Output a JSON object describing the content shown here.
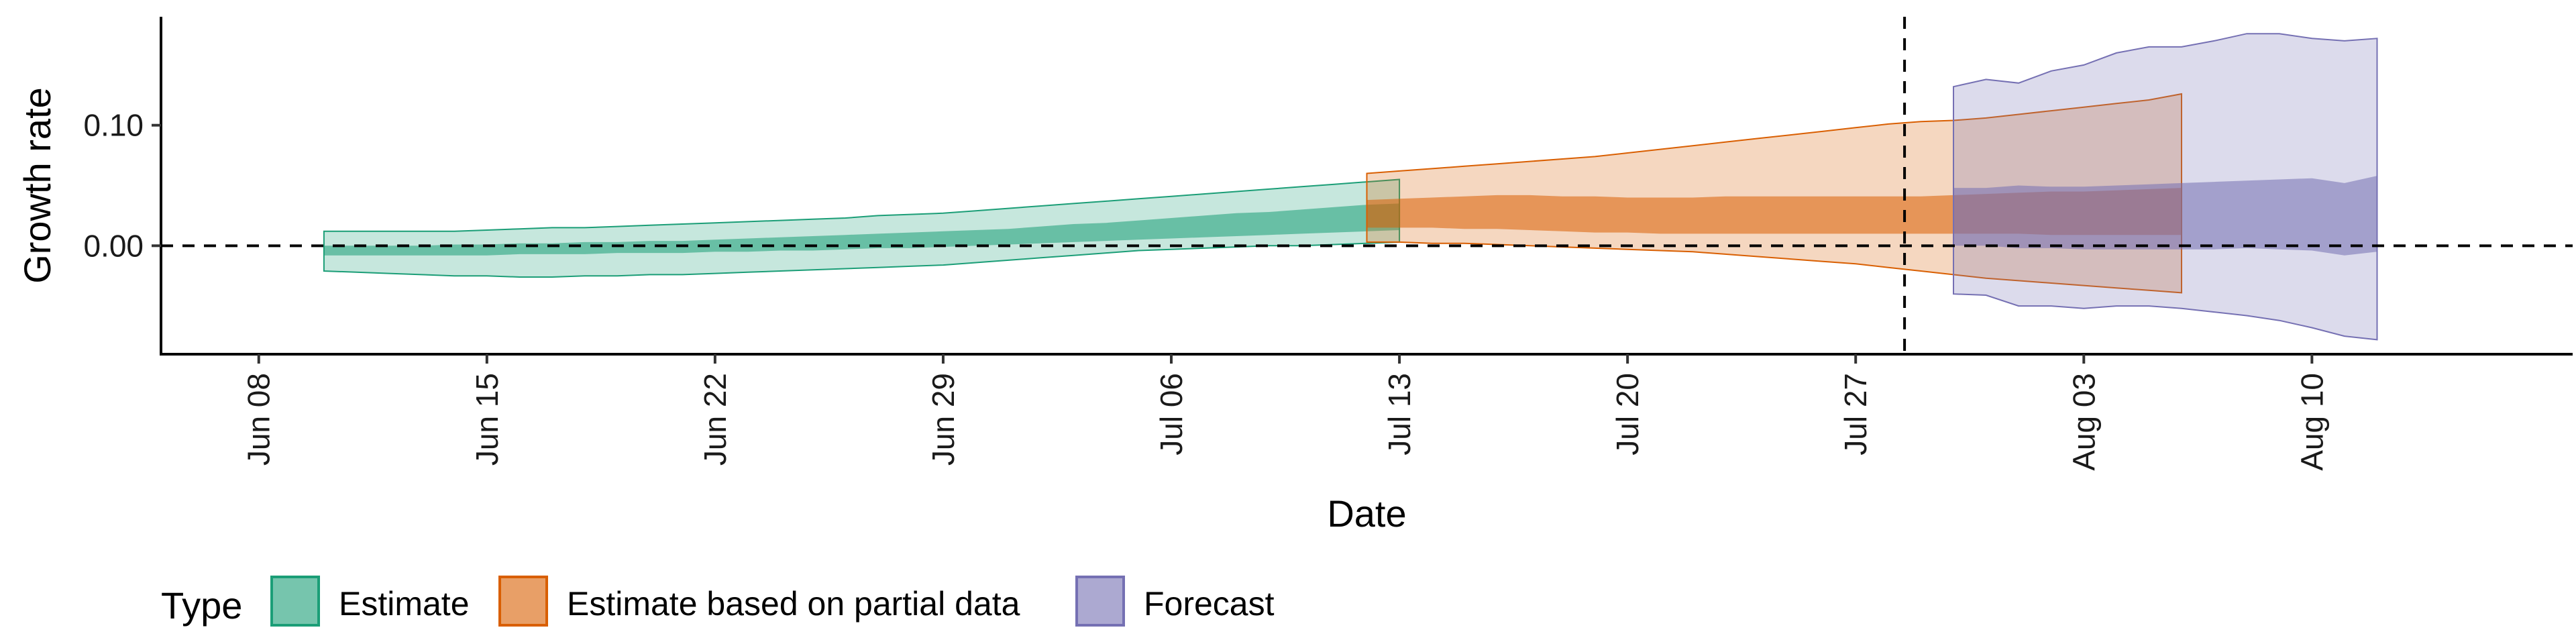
{
  "chart_data": {
    "type": "area",
    "xlabel": "Date",
    "ylabel": "Growth rate",
    "ylim": [
      -0.09,
      0.19
    ],
    "x_tick_labels": [
      "Jun 08",
      "Jun 15",
      "Jun 22",
      "Jun 29",
      "Jul 06",
      "Jul 13",
      "Jul 20",
      "Jul 27",
      "Aug 03",
      "Aug 10"
    ],
    "y_tick_labels": [
      "0.00",
      "0.10"
    ],
    "y_tick_values": [
      0.0,
      0.1
    ],
    "reference_lines": {
      "horizontal_y": 0.0,
      "vertical_date": "2020-07-29"
    },
    "grid": false,
    "legend": {
      "title": "Type",
      "position": "bottom-left",
      "entries": [
        "Estimate",
        "Estimate based on partial data",
        "Forecast"
      ]
    },
    "colors": {
      "Estimate": "#1B9E77",
      "Estimate based on partial data": "#D95F02",
      "Forecast": "#7570B3"
    },
    "series": [
      {
        "name": "Estimate",
        "start_date": "2020-06-10",
        "lower90": [
          -0.021,
          -0.022,
          -0.023,
          -0.024,
          -0.025,
          -0.025,
          -0.026,
          -0.026,
          -0.025,
          -0.025,
          -0.024,
          -0.024,
          -0.023,
          -0.022,
          -0.021,
          -0.02,
          -0.019,
          -0.018,
          -0.017,
          -0.016,
          -0.014,
          -0.012,
          -0.01,
          -0.008,
          -0.006,
          -0.004,
          -0.003,
          -0.002,
          -0.001,
          0.0,
          0.0,
          0.001,
          0.002,
          0.003
        ],
        "upper90": [
          0.012,
          0.012,
          0.012,
          0.012,
          0.012,
          0.013,
          0.014,
          0.015,
          0.015,
          0.016,
          0.017,
          0.018,
          0.019,
          0.02,
          0.021,
          0.022,
          0.023,
          0.025,
          0.026,
          0.027,
          0.029,
          0.031,
          0.033,
          0.035,
          0.037,
          0.039,
          0.041,
          0.043,
          0.045,
          0.047,
          0.049,
          0.051,
          0.053,
          0.055
        ],
        "lower50": [
          -0.008,
          -0.008,
          -0.008,
          -0.008,
          -0.008,
          -0.008,
          -0.007,
          -0.007,
          -0.007,
          -0.006,
          -0.006,
          -0.006,
          -0.005,
          -0.005,
          -0.004,
          -0.004,
          -0.003,
          -0.002,
          -0.002,
          -0.001,
          0.0,
          0.001,
          0.002,
          0.003,
          0.004,
          0.005,
          0.006,
          0.007,
          0.008,
          0.009,
          0.01,
          0.011,
          0.012,
          0.013
        ],
        "upper50": [
          0.0,
          0.0,
          0.0,
          0.0,
          0.001,
          0.001,
          0.002,
          0.002,
          0.003,
          0.003,
          0.004,
          0.004,
          0.005,
          0.006,
          0.007,
          0.008,
          0.009,
          0.01,
          0.011,
          0.012,
          0.013,
          0.014,
          0.016,
          0.018,
          0.019,
          0.021,
          0.023,
          0.025,
          0.027,
          0.028,
          0.03,
          0.032,
          0.034,
          0.035
        ]
      },
      {
        "name": "Estimate based on partial data",
        "start_date": "2020-07-12",
        "lower90": [
          0.003,
          0.003,
          0.002,
          0.002,
          0.001,
          0.0,
          -0.001,
          -0.002,
          -0.003,
          -0.004,
          -0.005,
          -0.007,
          -0.009,
          -0.011,
          -0.013,
          -0.015,
          -0.018,
          -0.021,
          -0.024,
          -0.027,
          -0.029,
          -0.031,
          -0.033,
          -0.035,
          -0.037,
          -0.039
        ],
        "upper90": [
          0.06,
          0.062,
          0.064,
          0.066,
          0.068,
          0.07,
          0.072,
          0.074,
          0.077,
          0.08,
          0.083,
          0.086,
          0.089,
          0.092,
          0.095,
          0.098,
          0.101,
          0.103,
          0.104,
          0.106,
          0.109,
          0.112,
          0.115,
          0.118,
          0.121,
          0.126
        ],
        "lower50": [
          0.015,
          0.015,
          0.015,
          0.014,
          0.014,
          0.013,
          0.012,
          0.011,
          0.011,
          0.01,
          0.01,
          0.01,
          0.01,
          0.01,
          0.01,
          0.01,
          0.01,
          0.01,
          0.01,
          0.01,
          0.01,
          0.009,
          0.009,
          0.009,
          0.009,
          0.009
        ],
        "upper50": [
          0.038,
          0.039,
          0.04,
          0.041,
          0.042,
          0.042,
          0.041,
          0.041,
          0.04,
          0.04,
          0.04,
          0.041,
          0.041,
          0.041,
          0.041,
          0.041,
          0.041,
          0.041,
          0.042,
          0.043,
          0.044,
          0.045,
          0.045,
          0.046,
          0.047,
          0.048
        ]
      },
      {
        "name": "Forecast",
        "start_date": "2020-07-30",
        "lower90": [
          -0.04,
          -0.041,
          -0.05,
          -0.05,
          -0.052,
          -0.05,
          -0.05,
          -0.052,
          -0.055,
          -0.058,
          -0.062,
          -0.068,
          -0.075,
          -0.078
        ],
        "upper90": [
          0.132,
          0.138,
          0.135,
          0.145,
          0.15,
          0.16,
          0.165,
          0.165,
          0.17,
          0.176,
          0.176,
          0.172,
          0.17,
          0.172
        ],
        "lower50": [
          0.0,
          0.0,
          -0.002,
          -0.002,
          -0.003,
          -0.003,
          -0.003,
          -0.003,
          -0.003,
          -0.002,
          -0.003,
          -0.004,
          -0.008,
          -0.005
        ],
        "upper50": [
          0.048,
          0.048,
          0.05,
          0.049,
          0.049,
          0.05,
          0.051,
          0.052,
          0.053,
          0.054,
          0.055,
          0.056,
          0.052,
          0.058
        ]
      }
    ]
  }
}
